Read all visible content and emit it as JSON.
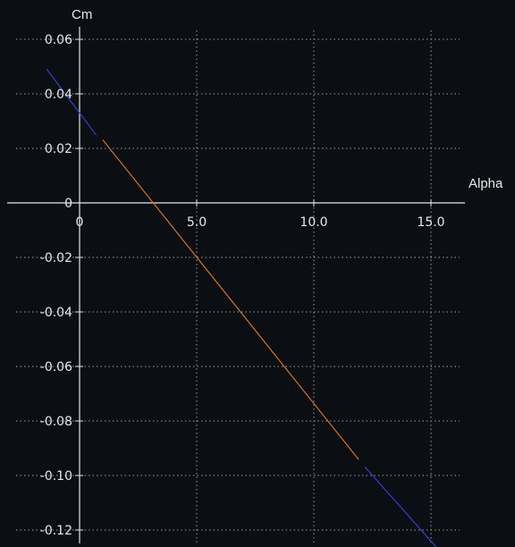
{
  "chart_data": {
    "type": "line",
    "xlabel": "Alpha",
    "ylabel": "Cm",
    "x_ticks": [
      {
        "value": 0,
        "label": "0"
      },
      {
        "value": 5,
        "label": "5.0"
      },
      {
        "value": 10,
        "label": "10.0"
      },
      {
        "value": 15,
        "label": "15.0"
      }
    ],
    "y_ticks": [
      {
        "value": 0.06,
        "label": "0.06"
      },
      {
        "value": 0.04,
        "label": "0.04"
      },
      {
        "value": 0.02,
        "label": "0.02"
      },
      {
        "value": 0,
        "label": "0"
      },
      {
        "value": -0.02,
        "label": "-0.02"
      },
      {
        "value": -0.04,
        "label": "-0.04"
      },
      {
        "value": -0.06,
        "label": "-0.06"
      },
      {
        "value": -0.08,
        "label": "-0.08"
      },
      {
        "value": -0.1,
        "label": "-0.10"
      },
      {
        "value": -0.12,
        "label": "-0.12"
      }
    ],
    "xlim": [
      0,
      15
    ],
    "ylim": [
      -0.12,
      0.06
    ],
    "grid": true,
    "series": [
      {
        "color": "#2f3fd0",
        "points": [
          [
            -1.4,
            0.049
          ],
          [
            0.7,
            0.025
          ]
        ]
      },
      {
        "color": "#d2731c",
        "points": [
          [
            1.0,
            0.023
          ],
          [
            11.9,
            -0.094
          ]
        ]
      },
      {
        "color": "#2f3fd0",
        "points": [
          [
            12.2,
            -0.097
          ],
          [
            15.2,
            -0.126
          ]
        ]
      }
    ]
  },
  "colors": {
    "background": "#0b0f14",
    "axis": "#e6e6e6",
    "grid": "#9a9a9a",
    "text": "#e8e8e8"
  }
}
